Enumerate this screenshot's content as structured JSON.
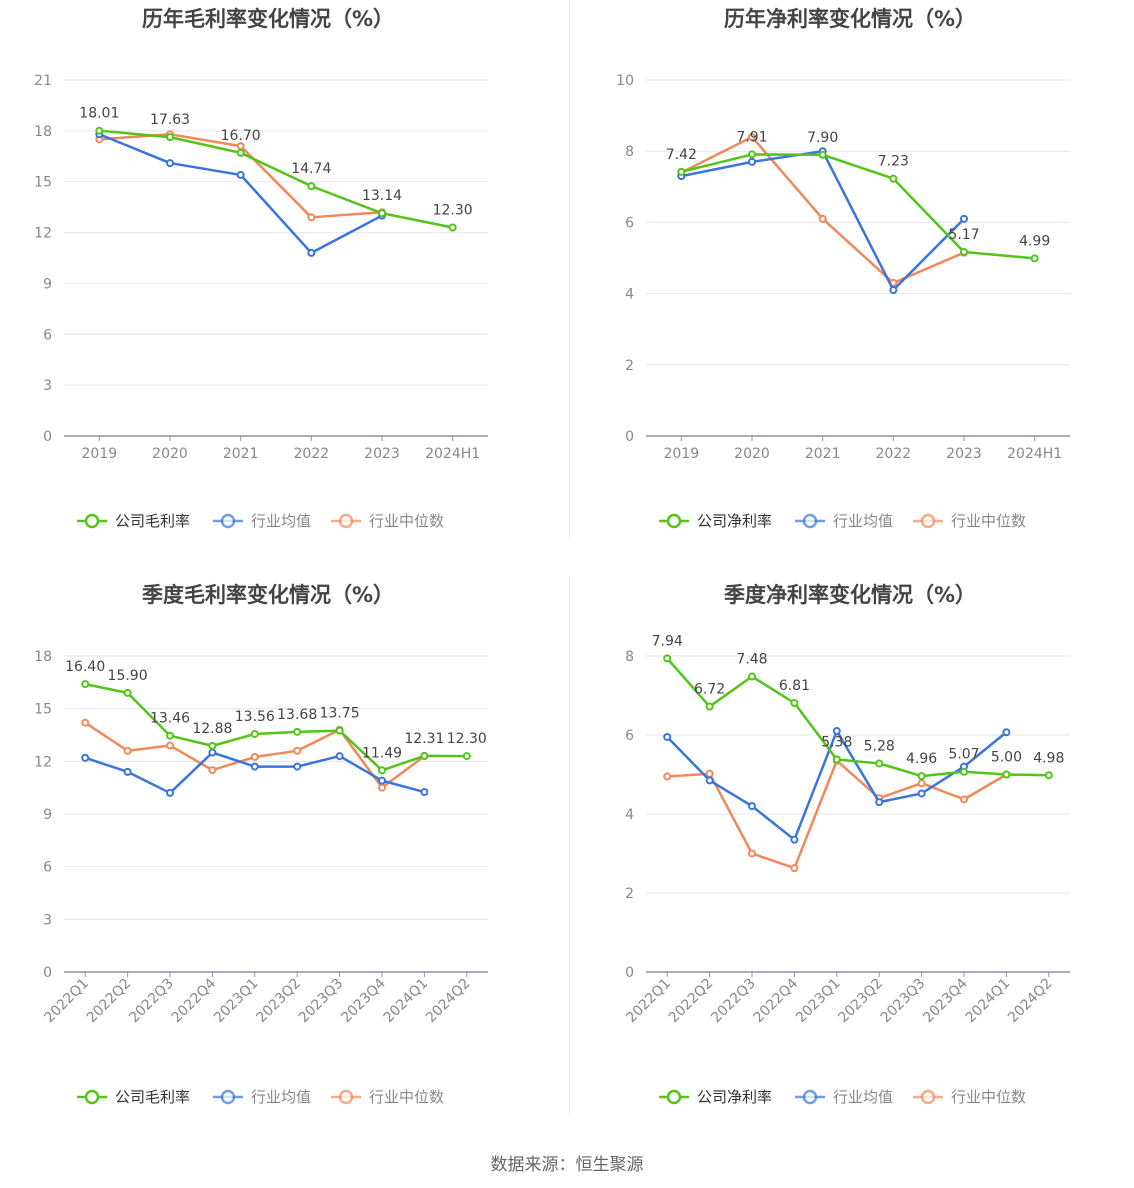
{
  "source": "数据来源：恒生聚源",
  "colors": {
    "company": "#52c41a",
    "avg": "#3a74dd",
    "median": "#f0895a",
    "grid": "#e4e6ee",
    "axis": "#8f93a8"
  },
  "legend": {
    "gross": [
      "公司毛利率",
      "行业均值",
      "行业中位数"
    ],
    "net": [
      "公司净利率",
      "行业均值",
      "行业中位数"
    ]
  },
  "chart_data": [
    {
      "type": "line",
      "title": "历年毛利率变化情况（%）",
      "categories": [
        "2019",
        "2020",
        "2021",
        "2022",
        "2023",
        "2024H1"
      ],
      "ylim": [
        0,
        21
      ],
      "yticks": [
        0,
        3,
        6,
        9,
        12,
        15,
        18,
        21
      ],
      "grid": true,
      "legend_position": "bottom",
      "series": [
        {
          "name": "公司毛利率",
          "values": [
            18.01,
            17.63,
            16.7,
            14.74,
            13.14,
            12.3
          ],
          "labels": [
            "18.01",
            "17.63",
            "16.70",
            "14.74",
            "13.14",
            "12.30"
          ]
        },
        {
          "name": "行业均值",
          "values": [
            17.8,
            16.1,
            15.4,
            10.8,
            13.0,
            null
          ]
        },
        {
          "name": "行业中位数",
          "values": [
            17.5,
            17.8,
            17.1,
            12.9,
            13.2,
            null
          ]
        }
      ]
    },
    {
      "type": "line",
      "title": "历年净利率变化情况（%）",
      "categories": [
        "2019",
        "2020",
        "2021",
        "2022",
        "2023",
        "2024H1"
      ],
      "ylim": [
        0,
        10
      ],
      "yticks": [
        0,
        2,
        4,
        6,
        8,
        10
      ],
      "grid": true,
      "legend_position": "bottom",
      "series": [
        {
          "name": "公司净利率",
          "values": [
            7.42,
            7.91,
            7.9,
            7.23,
            5.17,
            4.99
          ],
          "labels": [
            "7.42",
            "7.91",
            "7.90",
            "7.23",
            "5.17",
            "4.99"
          ]
        },
        {
          "name": "行业均值",
          "values": [
            7.3,
            7.7,
            8.0,
            4.1,
            6.1,
            null
          ]
        },
        {
          "name": "行业中位数",
          "values": [
            7.4,
            8.4,
            6.1,
            4.3,
            5.15,
            null
          ]
        }
      ]
    },
    {
      "type": "line",
      "title": "季度毛利率变化情况（%）",
      "categories": [
        "2022Q1",
        "2022Q2",
        "2022Q3",
        "2022Q4",
        "2023Q1",
        "2023Q2",
        "2023Q3",
        "2023Q4",
        "2024Q1",
        "2024Q2"
      ],
      "ylim": [
        0,
        18
      ],
      "yticks": [
        0,
        3,
        6,
        9,
        12,
        15,
        18
      ],
      "grid": true,
      "legend_position": "bottom",
      "series": [
        {
          "name": "公司毛利率",
          "values": [
            16.4,
            15.9,
            13.46,
            12.88,
            13.56,
            13.68,
            13.75,
            11.49,
            12.31,
            12.3
          ],
          "labels": [
            "16.40",
            "15.90",
            "13.46",
            "12.88",
            "13.56",
            "13.68",
            "13.75",
            "11.49",
            "12.31",
            "12.30"
          ]
        },
        {
          "name": "行业均值",
          "values": [
            12.2,
            11.4,
            10.2,
            12.5,
            11.7,
            11.7,
            12.3,
            10.9,
            10.25,
            null
          ]
        },
        {
          "name": "行业中位数",
          "values": [
            14.2,
            12.6,
            12.9,
            11.5,
            12.25,
            12.6,
            13.8,
            10.5,
            12.3,
            null
          ]
        }
      ]
    },
    {
      "type": "line",
      "title": "季度净利率变化情况（%）",
      "categories": [
        "2022Q1",
        "2022Q2",
        "2022Q3",
        "2022Q4",
        "2023Q1",
        "2023Q2",
        "2023Q3",
        "2023Q4",
        "2024Q1",
        "2024Q2"
      ],
      "ylim": [
        0,
        8
      ],
      "yticks": [
        0,
        2,
        4,
        6,
        8
      ],
      "grid": true,
      "legend_position": "bottom",
      "series": [
        {
          "name": "公司净利率",
          "values": [
            7.94,
            6.72,
            7.48,
            6.81,
            5.38,
            5.28,
            4.96,
            5.07,
            5.0,
            4.98
          ],
          "labels": [
            "7.94",
            "6.72",
            "7.48",
            "6.81",
            "5.38",
            "5.28",
            "4.96",
            "5.07",
            "5.00",
            "4.98"
          ]
        },
        {
          "name": "行业均值",
          "values": [
            5.95,
            4.85,
            4.2,
            3.35,
            6.1,
            4.3,
            4.52,
            5.2,
            6.07,
            null
          ]
        },
        {
          "name": "行业中位数",
          "values": [
            4.95,
            5.02,
            3.0,
            2.63,
            5.35,
            4.4,
            4.78,
            4.37,
            5.0,
            null
          ]
        }
      ]
    }
  ]
}
